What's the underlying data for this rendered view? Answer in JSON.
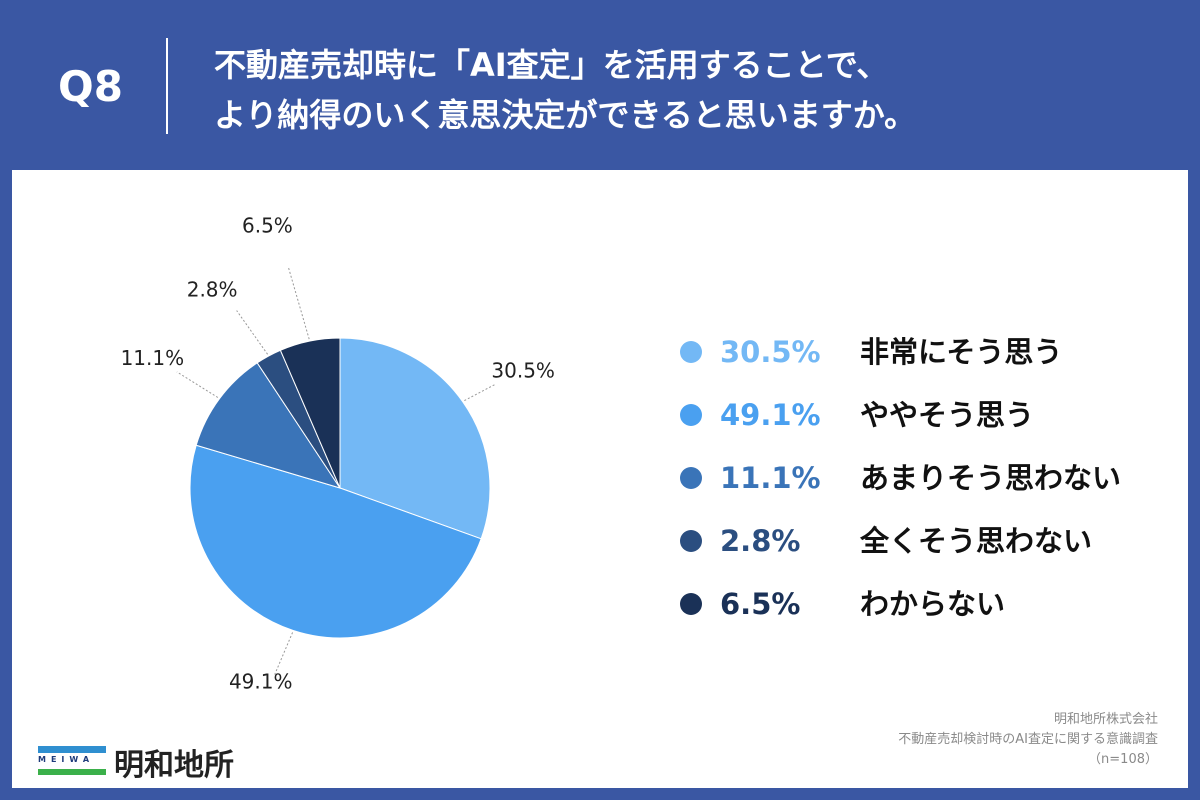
{
  "header": {
    "question_number": "Q8",
    "question_line1": "不動産売却時に「AI査定」を活用することで、",
    "question_line2": "より納得のいく意思決定ができると思いますか。"
  },
  "chart_data": {
    "type": "pie",
    "title": "",
    "categories": [
      "非常にそう思う",
      "ややそう思う",
      "あまりそう思わない",
      "全くそう思わない",
      "わからない"
    ],
    "values": [
      30.5,
      49.1,
      11.1,
      2.8,
      6.5
    ],
    "value_labels": [
      "30.5%",
      "49.1%",
      "11.1%",
      "2.8%",
      "6.5%"
    ],
    "colors": [
      "#73b8f5",
      "#4aa0f0",
      "#3a74b8",
      "#2b4e80",
      "#1a3157"
    ],
    "start_angle": "12 o'clock",
    "direction": "clockwise",
    "legend_placement": "right"
  },
  "legend": {
    "items": [
      {
        "pct": "30.5%",
        "label": "非常にそう思う",
        "color": "#73b8f5"
      },
      {
        "pct": "49.1%",
        "label": "ややそう思う",
        "color": "#4aa0f0"
      },
      {
        "pct": "11.1%",
        "label": "あまりそう思わない",
        "color": "#3a74b8"
      },
      {
        "pct": "2.8%",
        "label": "全くそう思わない",
        "color": "#2b4e80"
      },
      {
        "pct": "6.5%",
        "label": "わからない",
        "color": "#1a3157"
      }
    ]
  },
  "source": {
    "company": "明和地所株式会社",
    "survey": "不動産売却検討時のAI査定に関する意識調査",
    "sample": "（n=108）"
  },
  "logo": {
    "mark_text": "MEIWA",
    "name": "明和地所"
  },
  "colors": {
    "background": "#3a57a3",
    "card": "#ffffff"
  }
}
